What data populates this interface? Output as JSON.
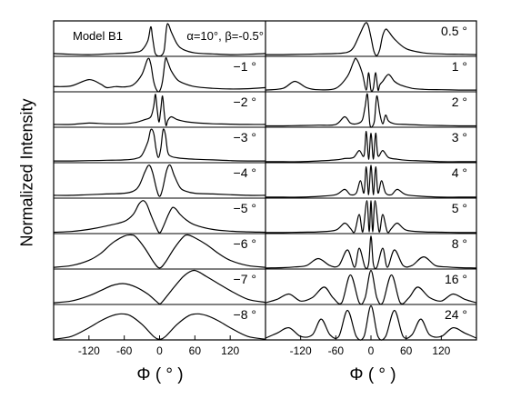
{
  "chart_data": {
    "type": "line",
    "ylabel": "Normalized Intensity",
    "xlim": [
      -180,
      180
    ],
    "x_ticks": [
      -120,
      -60,
      0,
      60,
      120
    ],
    "x_tick_labels": [
      "-120",
      "-60",
      "0",
      "60",
      "120"
    ],
    "grid": false,
    "panels": [
      {
        "name": "left",
        "xlabel": "Φ ( ° )",
        "model_label": "Model B1",
        "parameter_label": "α=10°, β=-0.5°",
        "series": [
          {
            "label": "",
            "x": [
              -180,
              -150,
              -120,
              -90,
              -60,
              -40,
              -30,
              -20,
              -15,
              -12,
              -8,
              -4,
              0,
              4,
              8,
              12,
              15,
              20,
              30,
              40,
              60,
              90,
              120,
              150,
              180
            ],
            "y": [
              0.08,
              0.06,
              0.05,
              0.07,
              0.09,
              0.12,
              0.18,
              0.45,
              0.85,
              0.55,
              0.12,
              0.02,
              0.01,
              0.04,
              0.2,
              0.85,
              0.92,
              0.7,
              0.35,
              0.2,
              0.1,
              0.07,
              0.05,
              0.06,
              0.08
            ]
          },
          {
            "label": "−1 °",
            "x": [
              -180,
              -150,
              -120,
              -100,
              -90,
              -75,
              -60,
              -45,
              -30,
              -20,
              -15,
              -10,
              -5,
              0,
              5,
              10,
              14,
              20,
              30,
              40,
              60,
              90,
              120,
              150,
              180
            ],
            "y": [
              0.15,
              0.17,
              0.35,
              0.22,
              0.12,
              0.15,
              0.14,
              0.2,
              0.5,
              0.95,
              0.8,
              0.3,
              0.05,
              0.02,
              0.3,
              0.95,
              0.85,
              0.6,
              0.35,
              0.25,
              0.15,
              0.1,
              0.08,
              0.09,
              0.12
            ]
          },
          {
            "label": "−2 °",
            "x": [
              -180,
              -150,
              -120,
              -90,
              -60,
              -40,
              -25,
              -15,
              -10,
              -7,
              -4,
              -1,
              2,
              5,
              8,
              11,
              14,
              20,
              30,
              45,
              60,
              90,
              120,
              150,
              180
            ],
            "y": [
              0.08,
              0.08,
              0.12,
              0.1,
              0.1,
              0.14,
              0.22,
              0.3,
              0.6,
              0.95,
              0.5,
              0.15,
              0.5,
              0.9,
              0.4,
              0.05,
              0.2,
              0.3,
              0.22,
              0.16,
              0.13,
              0.1,
              0.09,
              0.08,
              0.08
            ]
          },
          {
            "label": "−3 °",
            "x": [
              -180,
              -150,
              -120,
              -90,
              -60,
              -40,
              -30,
              -20,
              -15,
              -10,
              -6,
              -2,
              2,
              6,
              10,
              14,
              20,
              30,
              40,
              60,
              90,
              120,
              150,
              180
            ],
            "y": [
              0.05,
              0.05,
              0.06,
              0.07,
              0.08,
              0.12,
              0.22,
              0.6,
              0.95,
              0.85,
              0.4,
              0.15,
              0.4,
              0.95,
              0.8,
              0.3,
              0.18,
              0.14,
              0.12,
              0.1,
              0.08,
              0.06,
              0.05,
              0.05
            ]
          },
          {
            "label": "−4 °",
            "x": [
              -180,
              -150,
              -120,
              -90,
              -60,
              -45,
              -35,
              -25,
              -18,
              -12,
              -5,
              0,
              5,
              12,
              18,
              25,
              35,
              45,
              60,
              90,
              120,
              150,
              180
            ],
            "y": [
              0.08,
              0.08,
              0.1,
              0.12,
              0.14,
              0.2,
              0.35,
              0.75,
              0.95,
              0.75,
              0.25,
              0.05,
              0.25,
              0.8,
              0.95,
              0.65,
              0.3,
              0.2,
              0.14,
              0.12,
              0.1,
              0.08,
              0.08
            ]
          },
          {
            "label": "−5 °",
            "x": [
              -180,
              -150,
              -120,
              -90,
              -60,
              -45,
              -35,
              -28,
              -22,
              -15,
              -5,
              0,
              5,
              15,
              22,
              28,
              35,
              45,
              60,
              90,
              120,
              150,
              180
            ],
            "y": [
              0.04,
              0.06,
              0.12,
              0.22,
              0.35,
              0.55,
              0.85,
              0.95,
              0.85,
              0.55,
              0.15,
              0.02,
              0.15,
              0.55,
              0.75,
              0.7,
              0.55,
              0.4,
              0.25,
              0.12,
              0.07,
              0.05,
              0.04
            ]
          },
          {
            "label": "−6 °",
            "x": [
              -180,
              -150,
              -120,
              -100,
              -80,
              -60,
              -48,
              -40,
              -25,
              -10,
              0,
              10,
              25,
              40,
              48,
              60,
              80,
              100,
              120,
              150,
              180
            ],
            "y": [
              0.05,
              0.1,
              0.25,
              0.45,
              0.75,
              0.95,
              0.98,
              0.92,
              0.6,
              0.2,
              0.03,
              0.2,
              0.6,
              0.92,
              0.98,
              0.9,
              0.7,
              0.45,
              0.25,
              0.1,
              0.05
            ]
          },
          {
            "label": "−7 °",
            "x": [
              -180,
              -150,
              -120,
              -100,
              -80,
              -60,
              -40,
              -20,
              -5,
              0,
              5,
              20,
              40,
              55,
              65,
              80,
              100,
              120,
              150,
              180
            ],
            "y": [
              0.05,
              0.1,
              0.25,
              0.4,
              0.55,
              0.6,
              0.5,
              0.3,
              0.08,
              0.02,
              0.08,
              0.4,
              0.8,
              0.97,
              0.95,
              0.8,
              0.6,
              0.4,
              0.15,
              0.06
            ]
          },
          {
            "label": "−8 °",
            "x": [
              -180,
              -150,
              -120,
              -100,
              -80,
              -65,
              -50,
              -30,
              -10,
              0,
              10,
              30,
              50,
              65,
              80,
              100,
              120,
              150,
              180
            ],
            "y": [
              0.02,
              0.1,
              0.35,
              0.55,
              0.7,
              0.75,
              0.7,
              0.45,
              0.1,
              0.02,
              0.1,
              0.45,
              0.7,
              0.75,
              0.7,
              0.55,
              0.35,
              0.1,
              0.02
            ]
          }
        ]
      },
      {
        "name": "right",
        "xlabel": "Φ ( ° )",
        "series": [
          {
            "label": "0.5 °",
            "x": [
              -180,
              -150,
              -120,
              -90,
              -60,
              -40,
              -30,
              -20,
              -10,
              -5,
              0,
              5,
              10,
              15,
              20,
              25,
              30,
              40,
              60,
              90,
              120,
              150,
              180
            ],
            "y": [
              0.05,
              0.05,
              0.06,
              0.07,
              0.08,
              0.12,
              0.25,
              0.6,
              0.95,
              0.9,
              0.55,
              0.15,
              0.02,
              0.2,
              0.6,
              0.78,
              0.72,
              0.5,
              0.22,
              0.1,
              0.07,
              0.06,
              0.05
            ]
          },
          {
            "label": "1 °",
            "x": [
              -180,
              -150,
              -130,
              -110,
              -90,
              -60,
              -40,
              -30,
              -25,
              -15,
              -8,
              -4,
              0,
              4,
              8,
              12,
              15,
              20,
              30,
              40,
              50,
              70,
              90,
              120,
              150,
              180
            ],
            "y": [
              0.05,
              0.1,
              0.3,
              0.12,
              0.06,
              0.1,
              0.45,
              0.85,
              0.95,
              0.55,
              0.05,
              0.55,
              0.05,
              0.1,
              0.55,
              0.05,
              0.2,
              0.3,
              0.5,
              0.3,
              0.2,
              0.1,
              0.07,
              0.06,
              0.05,
              0.05
            ]
          },
          {
            "label": "2 °",
            "x": [
              -180,
              -150,
              -120,
              -90,
              -60,
              -45,
              -35,
              -25,
              -15,
              -10,
              -6,
              -2,
              2,
              6,
              10,
              15,
              20,
              25,
              30,
              40,
              60,
              90,
              120,
              150,
              180
            ],
            "y": [
              0.04,
              0.04,
              0.05,
              0.06,
              0.08,
              0.3,
              0.12,
              0.1,
              0.2,
              0.6,
              0.95,
              0.1,
              0.02,
              0.2,
              0.9,
              0.4,
              0.1,
              0.35,
              0.18,
              0.1,
              0.08,
              0.06,
              0.05,
              0.04,
              0.04
            ]
          },
          {
            "label": "3 °",
            "x": [
              -180,
              -150,
              -120,
              -90,
              -60,
              -45,
              -30,
              -20,
              -12,
              -8,
              -4,
              0,
              4,
              8,
              12,
              20,
              30,
              45,
              60,
              90,
              120,
              150,
              180
            ],
            "y": [
              0.03,
              0.03,
              0.03,
              0.05,
              0.08,
              0.12,
              0.15,
              0.35,
              0.2,
              0.9,
              0.1,
              0.85,
              0.1,
              0.85,
              0.2,
              0.35,
              0.15,
              0.1,
              0.07,
              0.05,
              0.03,
              0.03,
              0.03
            ]
          },
          {
            "label": "4 °",
            "x": [
              -180,
              -150,
              -120,
              -90,
              -60,
              -45,
              -35,
              -25,
              -18,
              -12,
              -8,
              -4,
              0,
              4,
              8,
              12,
              18,
              25,
              35,
              45,
              60,
              90,
              120,
              150,
              180
            ],
            "y": [
              0.03,
              0.03,
              0.03,
              0.05,
              0.1,
              0.25,
              0.1,
              0.15,
              0.5,
              0.15,
              0.9,
              0.1,
              0.95,
              0.1,
              0.9,
              0.15,
              0.5,
              0.15,
              0.1,
              0.25,
              0.1,
              0.05,
              0.03,
              0.03,
              0.03
            ]
          },
          {
            "label": "5 °",
            "x": [
              -180,
              -150,
              -120,
              -90,
              -60,
              -45,
              -35,
              -28,
              -20,
              -14,
              -7,
              -3,
              0,
              3,
              7,
              14,
              20,
              28,
              35,
              45,
              60,
              90,
              120,
              150,
              180
            ],
            "y": [
              0.03,
              0.03,
              0.04,
              0.05,
              0.1,
              0.3,
              0.15,
              0.05,
              0.55,
              0.05,
              0.95,
              0.05,
              0.95,
              0.05,
              0.95,
              0.05,
              0.55,
              0.05,
              0.15,
              0.3,
              0.1,
              0.05,
              0.04,
              0.03,
              0.03
            ]
          },
          {
            "label": "8 °",
            "x": [
              -180,
              -150,
              -130,
              -110,
              -90,
              -70,
              -55,
              -40,
              -28,
              -20,
              -10,
              -4,
              0,
              4,
              10,
              20,
              28,
              40,
              55,
              70,
              90,
              110,
              130,
              150,
              180
            ],
            "y": [
              0.03,
              0.04,
              0.06,
              0.1,
              0.3,
              0.1,
              0.1,
              0.55,
              0.05,
              0.6,
              0.05,
              0.15,
              0.95,
              0.15,
              0.05,
              0.6,
              0.05,
              0.55,
              0.1,
              0.1,
              0.35,
              0.1,
              0.06,
              0.04,
              0.03
            ]
          },
          {
            "label": "16 °",
            "x": [
              -180,
              -160,
              -140,
              -120,
              -100,
              -80,
              -65,
              -50,
              -35,
              -20,
              -10,
              0,
              10,
              20,
              35,
              50,
              65,
              80,
              100,
              120,
              140,
              160,
              180
            ],
            "y": [
              0.05,
              0.15,
              0.3,
              0.1,
              0.2,
              0.5,
              0.2,
              0.05,
              0.85,
              0.05,
              0.2,
              0.98,
              0.2,
              0.05,
              0.85,
              0.05,
              0.2,
              0.5,
              0.2,
              0.1,
              0.3,
              0.15,
              0.05
            ]
          },
          {
            "label": "24 °",
            "x": [
              -180,
              -160,
              -140,
              -120,
              -100,
              -85,
              -70,
              -55,
              -40,
              -25,
              -12,
              0,
              12,
              25,
              40,
              55,
              70,
              85,
              100,
              120,
              140,
              160,
              180
            ],
            "y": [
              0.05,
              0.2,
              0.35,
              0.1,
              0.15,
              0.6,
              0.15,
              0.1,
              0.85,
              0.1,
              0.1,
              0.98,
              0.1,
              0.1,
              0.85,
              0.1,
              0.15,
              0.6,
              0.15,
              0.1,
              0.35,
              0.2,
              0.05
            ]
          }
        ]
      }
    ]
  }
}
